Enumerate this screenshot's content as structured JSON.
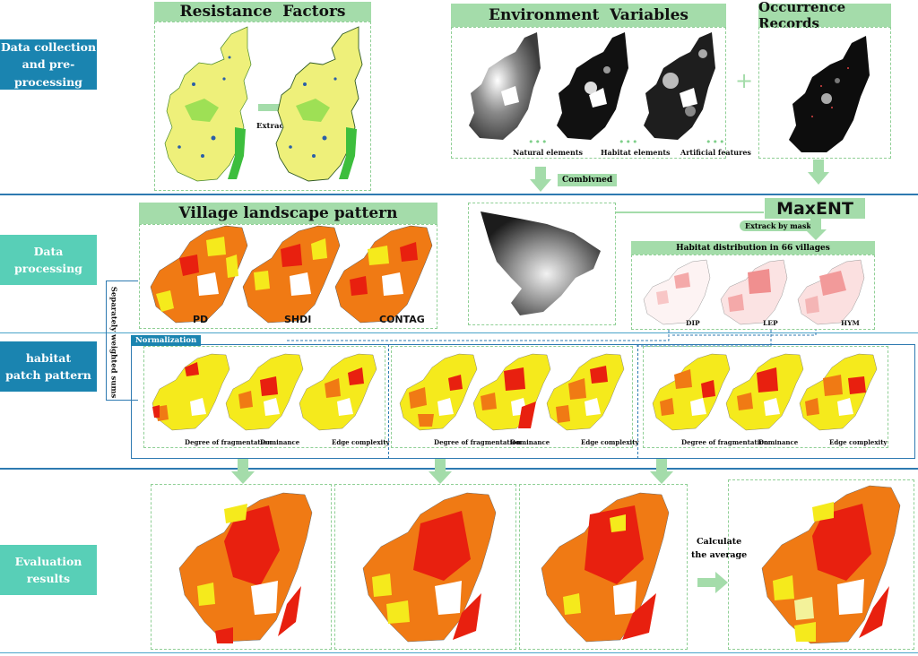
{
  "stages": [
    {
      "label": "Data collection\nand pre-processing"
    },
    {
      "label": "Data\nprocessing"
    },
    {
      "label": "habitat\npatch pattern"
    },
    {
      "label": "Evaluation\nresults"
    }
  ],
  "row1": {
    "resistance_title": "Resistance  Factors",
    "extract_label": "Extrack by mask",
    "env_title": "Environment  Variables",
    "env_labels": [
      "Natural elements",
      "Habitat elements",
      "Artificial features"
    ],
    "dots": "•••",
    "occurrence_title": "Occurrence Records",
    "plus": "+",
    "combined_label": "Combivned"
  },
  "row2": {
    "village_title": "Village landscape pattern",
    "metrics": [
      "PD",
      "SHDI",
      "CONTAG"
    ],
    "maxent_label": "MaxENT",
    "extract2_label": "Extrack by mask",
    "habitat_title": "Habitat distribution in 66 villages",
    "species": [
      "DIP",
      "LEP",
      "HYM"
    ],
    "weighted_label": "Separately weighted sums"
  },
  "row3": {
    "normalization": "Normalization",
    "group_labels": [
      "Degree of fragmentation",
      "Dominance",
      "Edge complexity"
    ]
  },
  "row4": {
    "calc_label": "Calculate\nthe average"
  },
  "colors": {
    "stage_blue": "#1a84b0",
    "stage_teal": "#58cfb7",
    "banner_green": "#a4dcaa",
    "map_red": "#e8200f",
    "map_orange": "#f07a14",
    "map_yellow": "#f5ea1c",
    "map_lightyellow": "#f3f29a"
  }
}
